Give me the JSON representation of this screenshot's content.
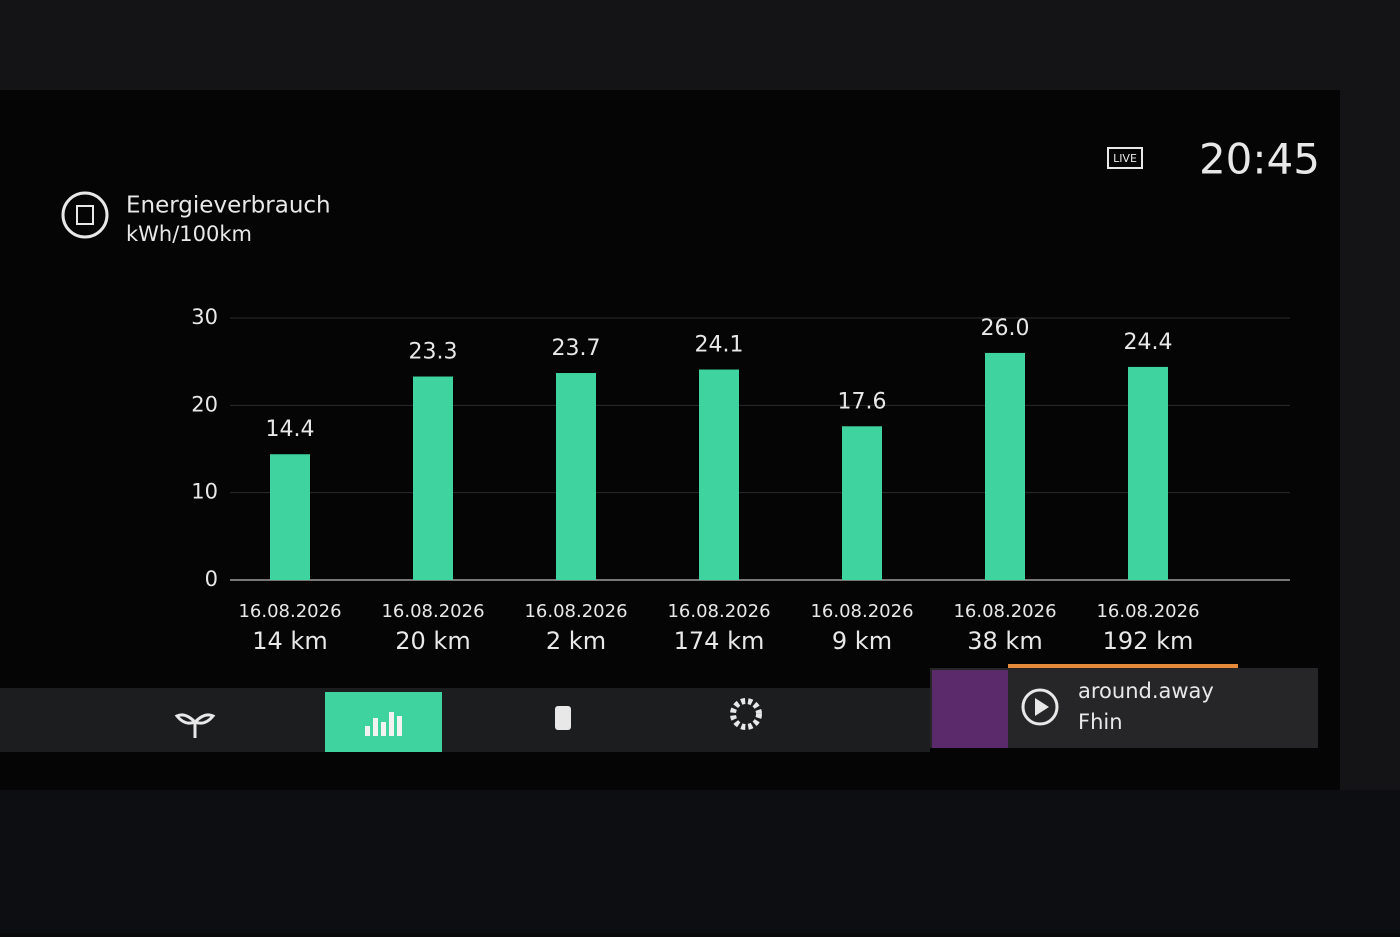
{
  "chart_data": {
    "type": "bar",
    "title": "Energieverbrauch",
    "subtitle": "kWh/100km",
    "categories": [
      "16.08.2026",
      "16.08.2026",
      "16.08.2026",
      "16.08.2026",
      "16.08.2026",
      "16.08.2026",
      "16.08.2026"
    ],
    "distances": [
      "14 km",
      "20 km",
      "2 km",
      "174 km",
      "9 km",
      "38 km",
      "192 km"
    ],
    "values": [
      14.4,
      23.3,
      23.7,
      24.1,
      17.6,
      26.0,
      24.4
    ],
    "value_labels": [
      "14.4",
      "23.3",
      "23.7",
      "24.1",
      "17.6",
      "26.0",
      "24.4"
    ],
    "color": "#3fd3a0",
    "ylim": [
      0,
      30
    ],
    "yticks": [
      0,
      10,
      20,
      30
    ],
    "grid": true
  },
  "status": {
    "live": "LIVE",
    "time": "20:45"
  },
  "media": {
    "track": "around.away",
    "artist": "Fhin"
  }
}
